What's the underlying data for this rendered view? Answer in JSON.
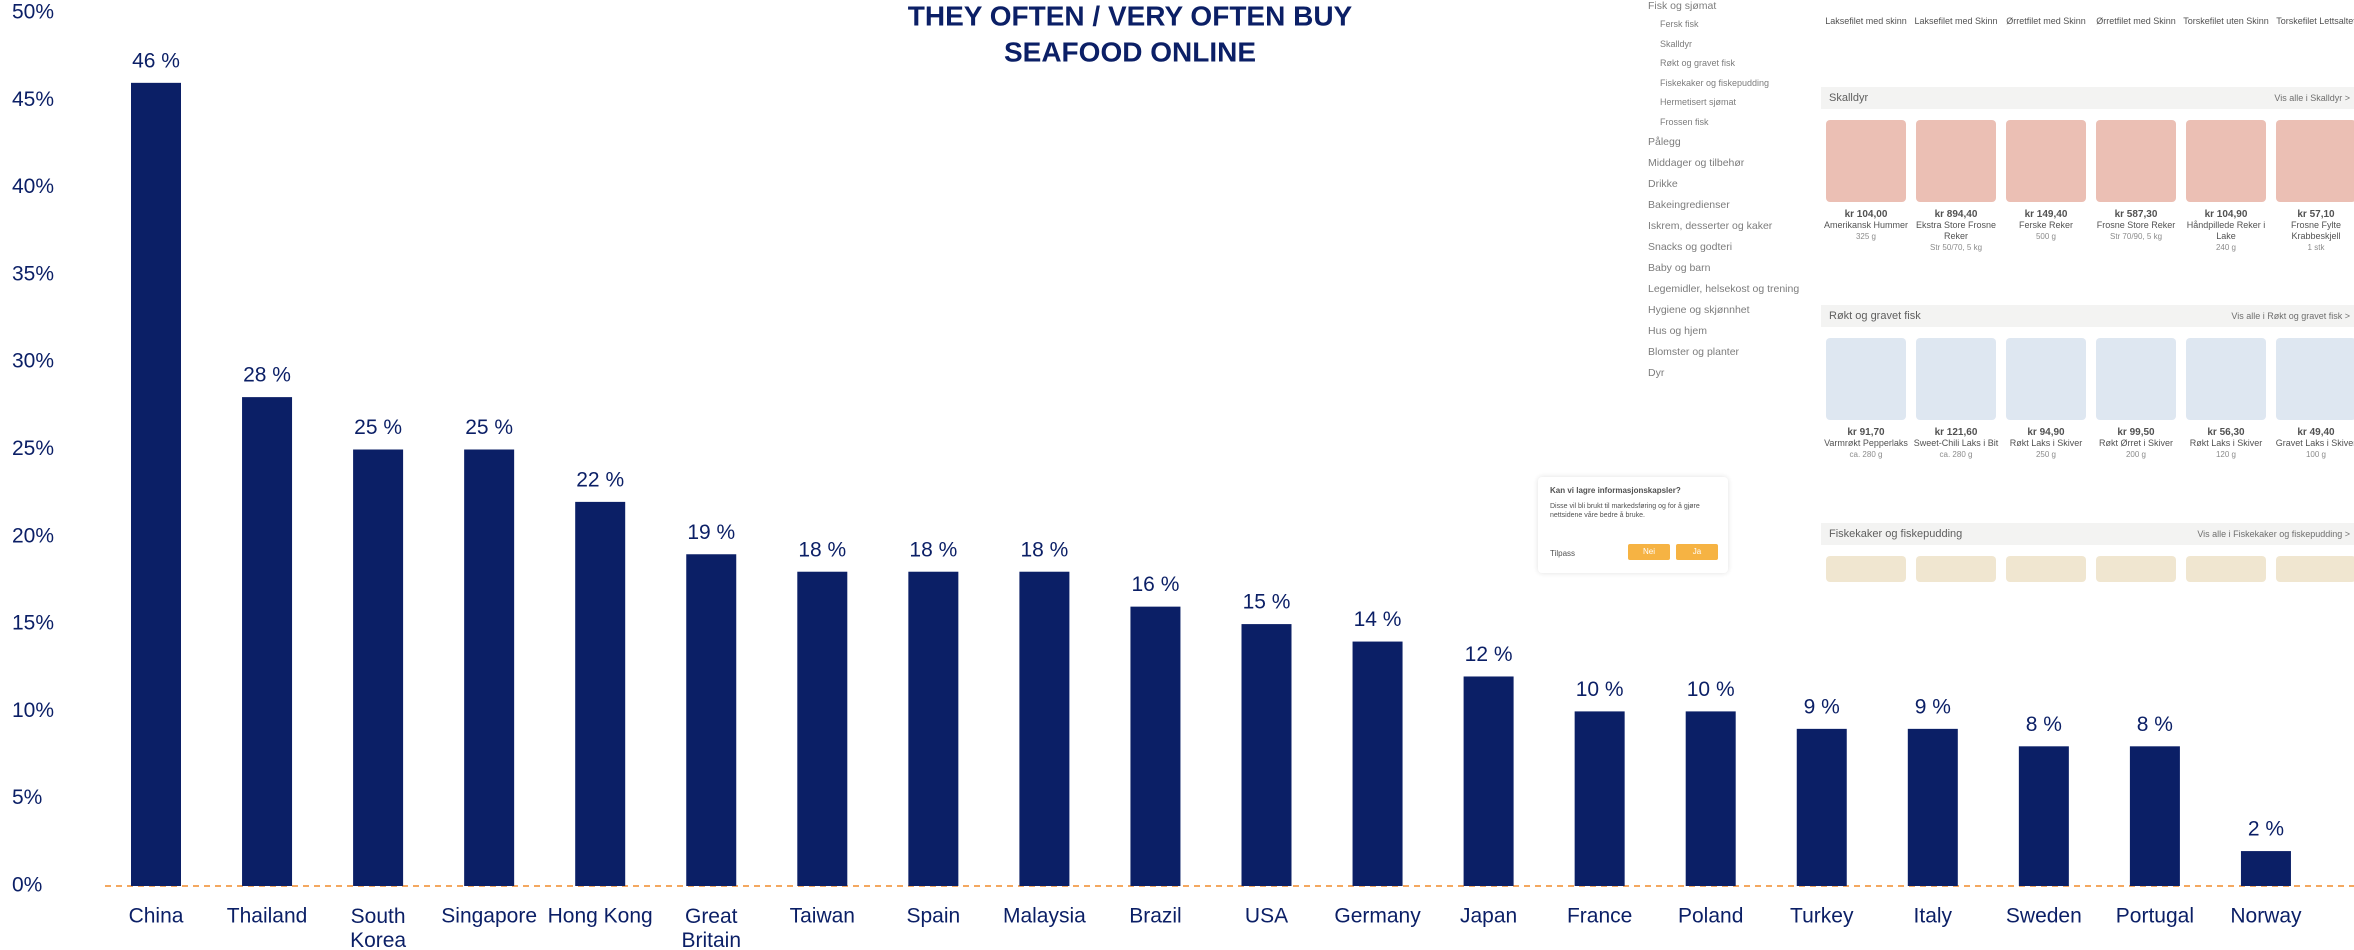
{
  "chart_data": {
    "type": "bar",
    "title": [
      "THEY OFTEN / VERY OFTEN BUY",
      "SEAFOOD ONLINE"
    ],
    "categories": [
      "China",
      "Thailand",
      "South Korea",
      "Singapore",
      "Hong Kong",
      "Great Britain",
      "Taiwan",
      "Spain",
      "Malaysia",
      "Brazil",
      "USA",
      "Germany",
      "Japan",
      "France",
      "Poland",
      "Turkey",
      "Italy",
      "Sweden",
      "Portugal",
      "Norway"
    ],
    "values": [
      46,
      28,
      25,
      25,
      22,
      19,
      18,
      18,
      18,
      16,
      15,
      14,
      12,
      10,
      10,
      9,
      9,
      8,
      8,
      2
    ],
    "value_labels": [
      "46 %",
      "28 %",
      "25 %",
      "25 %",
      "22 %",
      "19 %",
      "18 %",
      "18 %",
      "18 %",
      "16 %",
      "15 %",
      "14 %",
      "12 %",
      "10 %",
      "10 %",
      "9 %",
      "9 %",
      "8 %",
      "8 %",
      "2 %"
    ],
    "color": "#0b1f66",
    "ylim": [
      0,
      50
    ],
    "yticks": [
      {
        "value": 0,
        "label": "0%"
      },
      {
        "value": 5,
        "label": "5%"
      },
      {
        "value": 10,
        "label": "10%"
      },
      {
        "value": 15,
        "label": "15%"
      },
      {
        "value": 20,
        "label": "20%"
      },
      {
        "value": 25,
        "label": "25%"
      },
      {
        "value": 30,
        "label": "30%"
      },
      {
        "value": 35,
        "label": "35%"
      },
      {
        "value": 40,
        "label": "40%"
      },
      {
        "value": 45,
        "label": "45%"
      },
      {
        "value": 50,
        "label": "50%"
      }
    ],
    "grid": false
  },
  "screenshot": {
    "sidebar": {
      "title": "Fisk og sjømat",
      "subitems": [
        "Fersk fisk",
        "Skalldyr",
        "Røkt og gravet fisk",
        "Fiskekaker og fiskepudding",
        "Hermetisert sjømat",
        "Frossen fisk"
      ],
      "items": [
        "Pålegg",
        "Middager og tilbehør",
        "Drikke",
        "Bakeingredienser",
        "Iskrem, desserter og kaker",
        "Snacks og godteri",
        "Baby og barn",
        "Legemidler, helsekost og trening",
        "Hygiene og skjønnhet",
        "Hus og hjem",
        "Blomster og planter",
        "Dyr"
      ]
    },
    "top_row": [
      "Laksefilet med skinn",
      "Laksefilet med Skinn",
      "Ørretfilet med Skinn",
      "Ørretfilet med Skinn",
      "Torskefilet uten Skinn",
      "Torskefilet Lettsaltet"
    ],
    "sections": [
      {
        "title": "Skalldyr",
        "link": "Vis alle i Skalldyr >",
        "products": [
          {
            "price": "kr 104,00",
            "name": "Amerikansk Hummer",
            "size": "325 g"
          },
          {
            "price": "kr 894,40",
            "name": "Ekstra Store Frosne Reker",
            "size": "Str 50/70, 5 kg"
          },
          {
            "price": "kr 149,40",
            "name": "Ferske Reker",
            "size": "500 g"
          },
          {
            "price": "kr 587,30",
            "name": "Frosne Store Reker",
            "size": "Str 70/90, 5 kg"
          },
          {
            "price": "kr 104,90",
            "name": "Håndpillede Reker i Lake",
            "size": "240 g"
          },
          {
            "price": "kr 57,10",
            "name": "Frosne Fylte Krabbeskjell",
            "size": "1 stk"
          }
        ]
      },
      {
        "title": "Røkt og gravet fisk",
        "link": "Vis alle i Røkt og gravet fisk >",
        "products": [
          {
            "price": "kr 91,70",
            "name": "Varmrøkt Pepperlaks",
            "size": "ca. 280 g"
          },
          {
            "price": "kr 121,60",
            "name": "Sweet-Chili Laks i Bit",
            "size": "ca. 280 g"
          },
          {
            "price": "kr 94,90",
            "name": "Røkt Laks i Skiver",
            "size": "250 g"
          },
          {
            "price": "kr 99,50",
            "name": "Røkt Ørret i Skiver",
            "size": "200 g"
          },
          {
            "price": "kr 56,30",
            "name": "Røkt Laks i Skiver",
            "size": "120 g"
          },
          {
            "price": "kr 49,40",
            "name": "Gravet Laks i Skiver",
            "size": "100 g"
          }
        ]
      },
      {
        "title": "Fiskekaker og fiskepudding",
        "link": "Vis alle i Fiskekaker og fiskepudding >",
        "products": []
      }
    ],
    "cookie": {
      "title": "Kan vi lagre informasjonskapsler?",
      "text": "Disse vil bli brukt til markedsføring og for å gjøre nettsidene våre bedre å bruke.",
      "customize": "Tilpass",
      "no": "Nei",
      "yes": "Ja"
    }
  }
}
